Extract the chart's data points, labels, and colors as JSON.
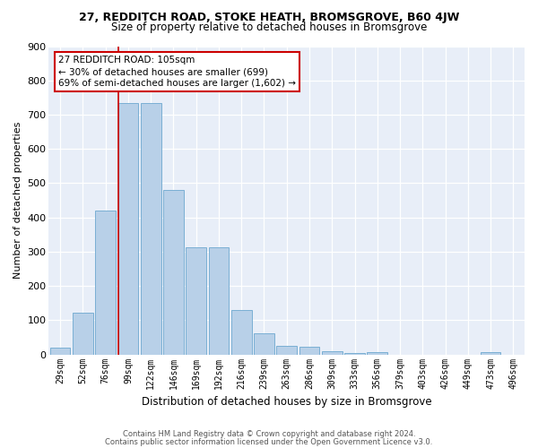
{
  "title1": "27, REDDITCH ROAD, STOKE HEATH, BROMSGROVE, B60 4JW",
  "title2": "Size of property relative to detached houses in Bromsgrove",
  "xlabel": "Distribution of detached houses by size in Bromsgrove",
  "ylabel": "Number of detached properties",
  "categories": [
    "29sqm",
    "52sqm",
    "76sqm",
    "99sqm",
    "122sqm",
    "146sqm",
    "169sqm",
    "192sqm",
    "216sqm",
    "239sqm",
    "263sqm",
    "286sqm",
    "309sqm",
    "333sqm",
    "356sqm",
    "379sqm",
    "403sqm",
    "426sqm",
    "449sqm",
    "473sqm",
    "496sqm"
  ],
  "values": [
    20,
    123,
    420,
    733,
    733,
    480,
    312,
    312,
    130,
    63,
    25,
    22,
    10,
    5,
    7,
    0,
    0,
    0,
    0,
    8,
    0
  ],
  "bar_color": "#b8d0e8",
  "bar_edge_color": "#7aafd4",
  "vline_x": 3,
  "vline_color": "#cc0000",
  "annotation_text": "27 REDDITCH ROAD: 105sqm\n← 30% of detached houses are smaller (699)\n69% of semi-detached houses are larger (1,602) →",
  "annotation_box_color": "#ffffff",
  "annotation_box_edge": "#cc0000",
  "footer1": "Contains HM Land Registry data © Crown copyright and database right 2024.",
  "footer2": "Contains public sector information licensed under the Open Government Licence v3.0.",
  "plot_bg_color": "#e8eef8",
  "ylim": [
    0,
    900
  ],
  "yticks": [
    0,
    100,
    200,
    300,
    400,
    500,
    600,
    700,
    800,
    900
  ]
}
